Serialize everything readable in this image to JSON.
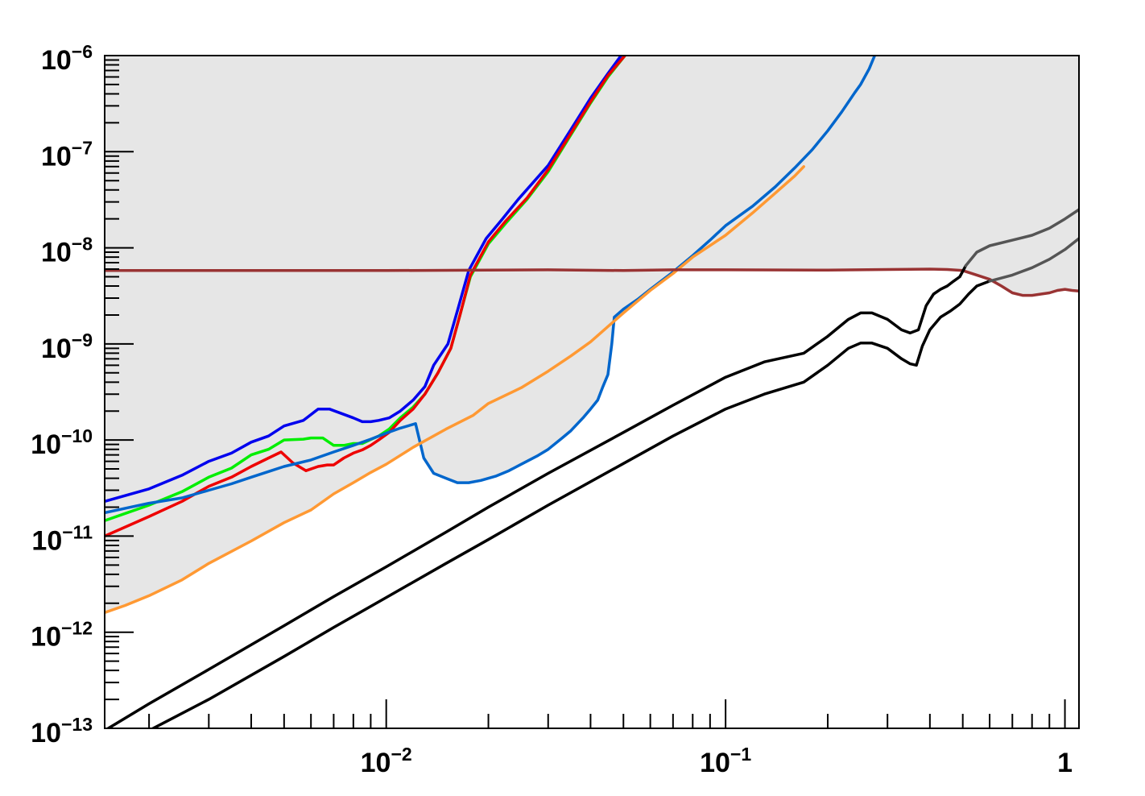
{
  "chart_data": {
    "type": "line",
    "title": "",
    "xlabel": "",
    "ylabel": "",
    "x_scale": "log",
    "y_scale": "log",
    "xlim": [
      0.00148,
      1.1
    ],
    "ylim": [
      1e-13,
      1e-06
    ],
    "grid": false,
    "x_tick_labels": [
      {
        "value": 0.01,
        "base": "10",
        "exp": "−2"
      },
      {
        "value": 0.1,
        "base": "10",
        "exp": "−1"
      },
      {
        "value": 1,
        "base": "1",
        "exp": ""
      }
    ],
    "y_tick_labels": [
      {
        "value": 1e-13,
        "base": "10",
        "exp": "−13"
      },
      {
        "value": 1e-12,
        "base": "10",
        "exp": "−12"
      },
      {
        "value": 1e-11,
        "base": "10",
        "exp": "−11"
      },
      {
        "value": 1e-10,
        "base": "10",
        "exp": "−10"
      },
      {
        "value": 1e-09,
        "base": "10",
        "exp": "−9"
      },
      {
        "value": 1e-08,
        "base": "10",
        "exp": "−8"
      },
      {
        "value": 1e-07,
        "base": "10",
        "exp": "−7"
      },
      {
        "value": 1e-06,
        "base": "10",
        "exp": "−6"
      }
    ],
    "excluded_region_color": "#e6e6e6",
    "series": [
      {
        "color": "#0000ee",
        "points": [
          [
            0.00148,
            2.3e-11
          ],
          [
            0.002,
            3.1e-11
          ],
          [
            0.0025,
            4.3e-11
          ],
          [
            0.003,
            6e-11
          ],
          [
            0.0035,
            7.3e-11
          ],
          [
            0.004,
            9.5e-11
          ],
          [
            0.0045,
            1.1e-10
          ],
          [
            0.005,
            1.4e-10
          ],
          [
            0.0057,
            1.6e-10
          ],
          [
            0.0063,
            2.1e-10
          ],
          [
            0.0068,
            2.1e-10
          ],
          [
            0.0075,
            1.85e-10
          ],
          [
            0.008,
            1.7e-10
          ],
          [
            0.0085,
            1.55e-10
          ],
          [
            0.009,
            1.55e-10
          ],
          [
            0.0095,
            1.6e-10
          ],
          [
            0.0102,
            1.7e-10
          ],
          [
            0.011,
            2e-10
          ],
          [
            0.012,
            2.6e-10
          ],
          [
            0.013,
            3.6e-10
          ],
          [
            0.0138,
            6e-10
          ],
          [
            0.0152,
            1e-09
          ],
          [
            0.0162,
            2.2e-09
          ],
          [
            0.0175,
            5.8e-09
          ],
          [
            0.0197,
            1.25e-08
          ],
          [
            0.022,
            2e-08
          ],
          [
            0.0245,
            3.2e-08
          ],
          [
            0.03,
            7.2e-08
          ],
          [
            0.035,
            1.7e-07
          ],
          [
            0.04,
            3.6e-07
          ],
          [
            0.045,
            6.5e-07
          ],
          [
            0.0492,
            1e-06
          ]
        ]
      },
      {
        "color": "#00ee00",
        "points": [
          [
            0.00148,
            1.45e-11
          ],
          [
            0.002,
            2.1e-11
          ],
          [
            0.0025,
            2.9e-11
          ],
          [
            0.003,
            4.1e-11
          ],
          [
            0.0035,
            5.1e-11
          ],
          [
            0.004,
            7e-11
          ],
          [
            0.0045,
            8e-11
          ],
          [
            0.005,
            1e-10
          ],
          [
            0.0057,
            1.02e-10
          ],
          [
            0.006,
            1.05e-10
          ],
          [
            0.0065,
            1.05e-10
          ],
          [
            0.007,
            8.8e-11
          ],
          [
            0.0075,
            8.8e-11
          ],
          [
            0.008,
            9.2e-11
          ],
          [
            0.0085,
            9.2e-11
          ],
          [
            0.009,
            1.01e-10
          ],
          [
            0.0095,
            1.1e-10
          ],
          [
            0.0102,
            1.3e-10
          ],
          [
            0.011,
            1.7e-10
          ],
          [
            0.012,
            2.2e-10
          ],
          [
            0.013,
            3e-10
          ],
          [
            0.0142,
            5e-10
          ],
          [
            0.0155,
            9e-10
          ],
          [
            0.0165,
            2e-09
          ],
          [
            0.0177,
            5e-09
          ],
          [
            0.02,
            1.1e-08
          ],
          [
            0.0225,
            1.8e-08
          ],
          [
            0.026,
            3.2e-08
          ],
          [
            0.03,
            6.2e-08
          ],
          [
            0.035,
            1.5e-07
          ],
          [
            0.04,
            3.2e-07
          ],
          [
            0.045,
            6e-07
          ],
          [
            0.0505,
            1e-06
          ]
        ]
      },
      {
        "color": "#ee0000",
        "points": [
          [
            0.00148,
            1e-11
          ],
          [
            0.002,
            1.6e-11
          ],
          [
            0.0025,
            2.3e-11
          ],
          [
            0.003,
            3.3e-11
          ],
          [
            0.0035,
            4.1e-11
          ],
          [
            0.004,
            5.3e-11
          ],
          [
            0.0045,
            6.5e-11
          ],
          [
            0.0049,
            7.5e-11
          ],
          [
            0.0053,
            5.8e-11
          ],
          [
            0.0058,
            4.8e-11
          ],
          [
            0.0063,
            5.3e-11
          ],
          [
            0.0067,
            5.5e-11
          ],
          [
            0.007,
            5.5e-11
          ],
          [
            0.0075,
            6.5e-11
          ],
          [
            0.008,
            7.3e-11
          ],
          [
            0.0085,
            7.9e-11
          ],
          [
            0.009,
            8.8e-11
          ],
          [
            0.0095,
            1e-10
          ],
          [
            0.0102,
            1.2e-10
          ],
          [
            0.011,
            1.6e-10
          ],
          [
            0.012,
            2.1e-10
          ],
          [
            0.013,
            3e-10
          ],
          [
            0.0142,
            5e-10
          ],
          [
            0.0155,
            9e-10
          ],
          [
            0.0165,
            2e-09
          ],
          [
            0.0177,
            5.2e-09
          ],
          [
            0.02,
            1.15e-08
          ],
          [
            0.0225,
            1.9e-08
          ],
          [
            0.026,
            3.3e-08
          ],
          [
            0.03,
            6.5e-08
          ],
          [
            0.035,
            1.55e-07
          ],
          [
            0.04,
            3.3e-07
          ],
          [
            0.045,
            6.2e-07
          ],
          [
            0.0505,
            1e-06
          ]
        ]
      },
      {
        "color": "#0066cc",
        "points": [
          [
            0.00148,
            1.75e-11
          ],
          [
            0.002,
            2.2e-11
          ],
          [
            0.0025,
            2.5e-11
          ],
          [
            0.003,
            3e-11
          ],
          [
            0.0035,
            3.5e-11
          ],
          [
            0.004,
            4.1e-11
          ],
          [
            0.0045,
            4.7e-11
          ],
          [
            0.005,
            5.3e-11
          ],
          [
            0.006,
            6.2e-11
          ],
          [
            0.007,
            7.5e-11
          ],
          [
            0.008,
            8.8e-11
          ],
          [
            0.009,
            1.02e-10
          ],
          [
            0.01,
            1.18e-10
          ],
          [
            0.011,
            1.33e-10
          ],
          [
            0.0122,
            1.48e-10
          ],
          [
            0.0129,
            6.5e-11
          ],
          [
            0.0138,
            4.5e-11
          ],
          [
            0.015,
            4e-11
          ],
          [
            0.0162,
            3.6e-11
          ],
          [
            0.0175,
            3.6e-11
          ],
          [
            0.019,
            3.8e-11
          ],
          [
            0.021,
            4.2e-11
          ],
          [
            0.023,
            4.8e-11
          ],
          [
            0.025,
            5.6e-11
          ],
          [
            0.028,
            6.9e-11
          ],
          [
            0.03,
            8e-11
          ],
          [
            0.033,
            1.05e-10
          ],
          [
            0.035,
            1.25e-10
          ],
          [
            0.038,
            1.7e-10
          ],
          [
            0.04,
            2.1e-10
          ],
          [
            0.042,
            2.6e-10
          ],
          [
            0.0435,
            3.6e-10
          ],
          [
            0.045,
            4.8e-10
          ],
          [
            0.0462,
            1e-09
          ],
          [
            0.047,
            1.9e-09
          ],
          [
            0.05,
            2.3e-09
          ],
          [
            0.055,
            2.9e-09
          ],
          [
            0.06,
            3.7e-09
          ],
          [
            0.07,
            5.6e-09
          ],
          [
            0.08,
            8.3e-09
          ],
          [
            0.09,
            1.2e-08
          ],
          [
            0.1,
            1.7e-08
          ],
          [
            0.12,
            2.7e-08
          ],
          [
            0.14,
            4.3e-08
          ],
          [
            0.16,
            6.8e-08
          ],
          [
            0.18,
            1.05e-07
          ],
          [
            0.2,
            1.65e-07
          ],
          [
            0.22,
            2.6e-07
          ],
          [
            0.24,
            4.1e-07
          ],
          [
            0.25,
            5e-07
          ],
          [
            0.265,
            7.3e-07
          ],
          [
            0.275,
            1e-06
          ]
        ]
      },
      {
        "color": "#ff9933",
        "points": [
          [
            0.00148,
            1.6e-12
          ],
          [
            0.0017,
            1.9e-12
          ],
          [
            0.002,
            2.4e-12
          ],
          [
            0.0025,
            3.5e-12
          ],
          [
            0.003,
            5.2e-12
          ],
          [
            0.004,
            8.9e-12
          ],
          [
            0.005,
            1.38e-11
          ],
          [
            0.006,
            1.87e-11
          ],
          [
            0.007,
            2.75e-11
          ],
          [
            0.008,
            3.6e-11
          ],
          [
            0.009,
            4.6e-11
          ],
          [
            0.01,
            5.6e-11
          ],
          [
            0.012,
            8.4e-11
          ],
          [
            0.015,
            1.3e-10
          ],
          [
            0.018,
            1.8e-10
          ],
          [
            0.02,
            2.4e-10
          ],
          [
            0.025,
            3.5e-10
          ],
          [
            0.03,
            5.2e-10
          ],
          [
            0.035,
            7.5e-10
          ],
          [
            0.04,
            1.05e-09
          ],
          [
            0.05,
            2.1e-09
          ],
          [
            0.06,
            3.6e-09
          ],
          [
            0.07,
            5.4e-09
          ],
          [
            0.08,
            8e-09
          ],
          [
            0.1,
            1.35e-08
          ],
          [
            0.12,
            2.3e-08
          ],
          [
            0.14,
            3.7e-08
          ],
          [
            0.16,
            5.6e-08
          ],
          [
            0.17,
            7e-08
          ]
        ]
      },
      {
        "color": "#993333",
        "points": [
          [
            0.00148,
            5.8e-09
          ],
          [
            0.003,
            5.8e-09
          ],
          [
            0.01,
            5.8e-09
          ],
          [
            0.02,
            5.85e-09
          ],
          [
            0.03,
            5.9e-09
          ],
          [
            0.05,
            5.8e-09
          ],
          [
            0.07,
            5.9e-09
          ],
          [
            0.1,
            5.9e-09
          ],
          [
            0.2,
            5.85e-09
          ],
          [
            0.3,
            5.95e-09
          ],
          [
            0.4,
            6e-09
          ],
          [
            0.45,
            5.95e-09
          ],
          [
            0.5,
            5.8e-09
          ],
          [
            0.55,
            5.2e-09
          ],
          [
            0.6,
            4.7e-09
          ],
          [
            0.65,
            4e-09
          ],
          [
            0.7,
            3.4e-09
          ],
          [
            0.75,
            3.2e-09
          ],
          [
            0.8,
            3.2e-09
          ],
          [
            0.85,
            3.3e-09
          ],
          [
            0.9,
            3.4e-09
          ],
          [
            0.95,
            3.6e-09
          ],
          [
            1.0,
            3.7e-09
          ],
          [
            1.05,
            3.6e-09
          ],
          [
            1.1,
            3.55e-09
          ]
        ]
      },
      {
        "color": "#000000",
        "points": [
          [
            0.00148,
            9.5e-14
          ],
          [
            0.002,
            1.8e-13
          ],
          [
            0.003,
            4.1e-13
          ],
          [
            0.005,
            1.17e-12
          ],
          [
            0.007,
            2.35e-12
          ],
          [
            0.01,
            4.8e-12
          ],
          [
            0.015,
            1.1e-11
          ],
          [
            0.02,
            2e-11
          ],
          [
            0.03,
            4.5e-11
          ],
          [
            0.05,
            1.2e-10
          ],
          [
            0.07,
            2.3e-10
          ],
          [
            0.1,
            4.5e-10
          ],
          [
            0.13,
            6.5e-10
          ],
          [
            0.17,
            8e-10
          ],
          [
            0.2,
            1.2e-09
          ],
          [
            0.23,
            1.8e-09
          ],
          [
            0.25,
            2.1e-09
          ],
          [
            0.27,
            2.1e-09
          ],
          [
            0.3,
            1.8e-09
          ],
          [
            0.33,
            1.4e-09
          ],
          [
            0.35,
            1.3e-09
          ],
          [
            0.37,
            1.4e-09
          ],
          [
            0.39,
            2.5e-09
          ],
          [
            0.41,
            3.3e-09
          ],
          [
            0.43,
            3.7e-09
          ],
          [
            0.45,
            4e-09
          ],
          [
            0.47,
            4.5e-09
          ],
          [
            0.49,
            5e-09
          ],
          [
            0.51,
            6.5e-09
          ]
        ]
      },
      {
        "color": "#000000",
        "points": [
          [
            0.002,
            9.5e-14
          ],
          [
            0.003,
            2e-13
          ],
          [
            0.005,
            5.6e-13
          ],
          [
            0.007,
            1.12e-12
          ],
          [
            0.01,
            2.3e-12
          ],
          [
            0.015,
            5.2e-12
          ],
          [
            0.02,
            9.2e-12
          ],
          [
            0.03,
            2.1e-11
          ],
          [
            0.05,
            5.7e-11
          ],
          [
            0.07,
            1.1e-10
          ],
          [
            0.1,
            2.1e-10
          ],
          [
            0.13,
            3e-10
          ],
          [
            0.17,
            4e-10
          ],
          [
            0.2,
            6e-10
          ],
          [
            0.23,
            9e-10
          ],
          [
            0.25,
            1.02e-09
          ],
          [
            0.27,
            1.02e-09
          ],
          [
            0.3,
            9e-10
          ],
          [
            0.33,
            7e-10
          ],
          [
            0.35,
            6.2e-10
          ],
          [
            0.365,
            6e-10
          ],
          [
            0.38,
            9.5e-10
          ],
          [
            0.4,
            1.4e-09
          ],
          [
            0.43,
            1.9e-09
          ],
          [
            0.46,
            2.2e-09
          ],
          [
            0.49,
            2.6e-09
          ],
          [
            0.52,
            3.3e-09
          ],
          [
            0.55,
            4e-09
          ],
          [
            0.6,
            4.5e-09
          ]
        ]
      },
      {
        "color": "#555555",
        "points": [
          [
            0.51,
            6.5e-09
          ],
          [
            0.55,
            9e-09
          ],
          [
            0.6,
            1.05e-08
          ],
          [
            0.7,
            1.2e-08
          ],
          [
            0.8,
            1.35e-08
          ],
          [
            0.9,
            1.6e-08
          ],
          [
            1.0,
            2e-08
          ],
          [
            1.1,
            2.5e-08
          ]
        ]
      },
      {
        "color": "#555555",
        "points": [
          [
            0.6,
            4.5e-09
          ],
          [
            0.7,
            5.2e-09
          ],
          [
            0.8,
            6.2e-09
          ],
          [
            0.9,
            7.6e-09
          ],
          [
            1.0,
            9.6e-09
          ],
          [
            1.1,
            1.25e-08
          ]
        ]
      }
    ]
  }
}
